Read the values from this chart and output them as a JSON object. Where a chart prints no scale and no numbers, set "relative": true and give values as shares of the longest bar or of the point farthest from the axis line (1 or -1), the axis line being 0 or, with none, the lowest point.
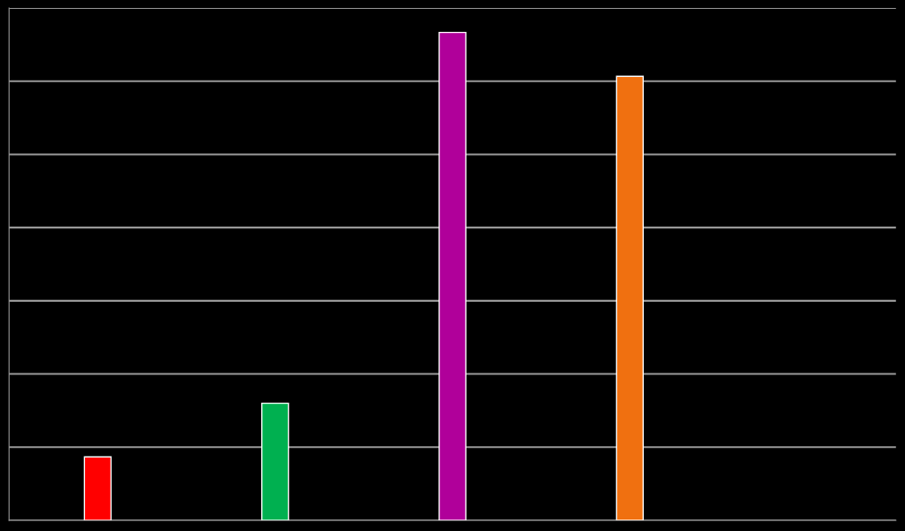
{
  "chart_data": {
    "type": "bar",
    "relative": true,
    "categories": [
      null,
      null,
      null,
      null
    ],
    "values": [
      0.13,
      0.24,
      1,
      0.91
    ],
    "colors": [
      "#ff0000",
      "#00b050",
      "#b0009a",
      "#f07010"
    ],
    "grid": "y"
  }
}
